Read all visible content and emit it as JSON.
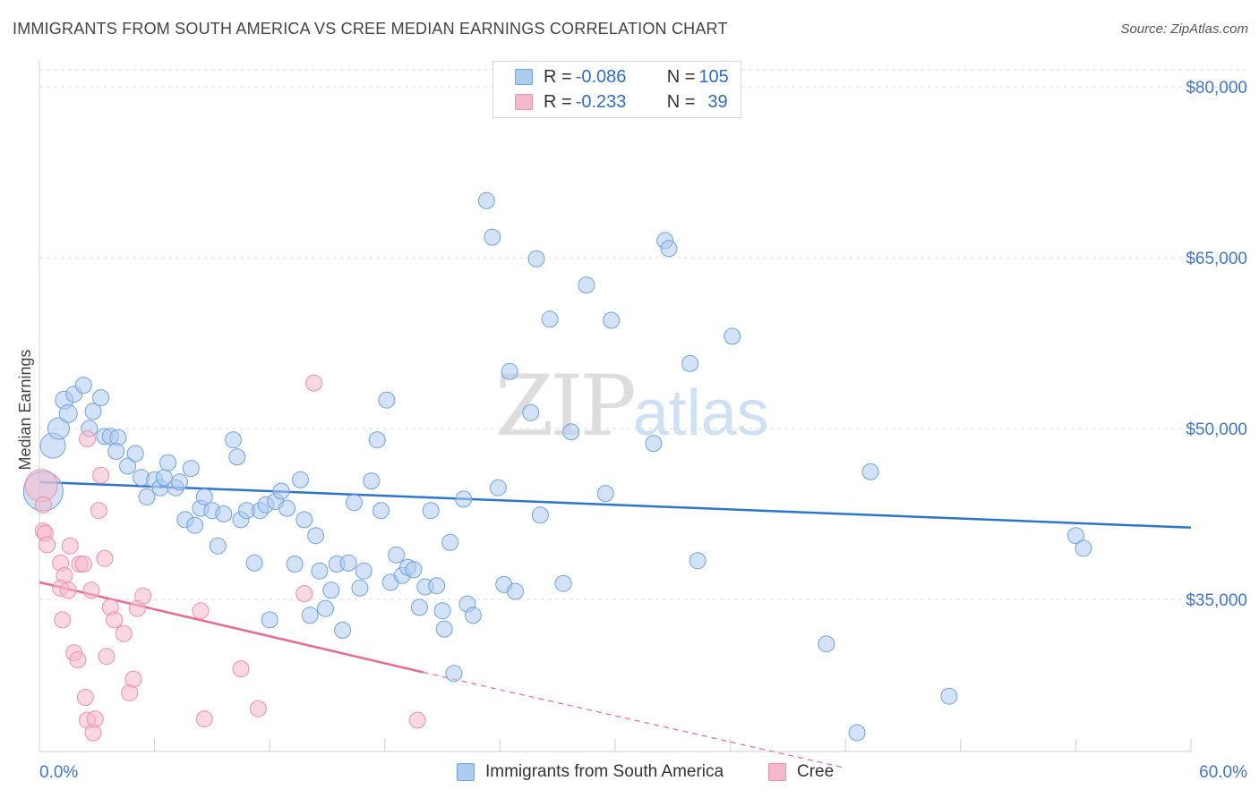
{
  "title": "IMMIGRANTS FROM SOUTH AMERICA VS CREE MEDIAN EARNINGS CORRELATION CHART",
  "source": "Source: ZipAtlas.com",
  "watermark": {
    "zip": "ZIP",
    "atlas": "atlas"
  },
  "legend": {
    "rows": [
      {
        "r_label": "R = ",
        "r_value": "-0.086",
        "n_label": "N = ",
        "n_value": "105",
        "color": "#aecbf0"
      },
      {
        "r_label": "R = ",
        "r_value": "-0.233",
        "n_label": "N = ",
        "n_value": "39",
        "color": "#f6b8cb"
      }
    ]
  },
  "bottom_legend": [
    {
      "label": "Immigrants from South America",
      "color": "#aecbf0"
    },
    {
      "label": "Cree",
      "color": "#f6b8cb"
    }
  ],
  "chart_data": {
    "type": "scatter",
    "title": "IMMIGRANTS FROM SOUTH AMERICA VS CREE MEDIAN EARNINGS CORRELATION CHART",
    "ylabel": "Median Earnings",
    "xlabel": "",
    "xlim": [
      0,
      60
    ],
    "ylim": [
      20000,
      82000
    ],
    "x_tick_labels": [
      "0.0%",
      "60.0%"
    ],
    "y_ticks": [
      35000,
      50000,
      65000,
      80000
    ],
    "y_tick_labels": [
      "$35,000",
      "$50,000",
      "$65,000",
      "$80,000"
    ],
    "grid": true,
    "series": [
      {
        "name": "Immigrants from South America",
        "color": "#6fa3e0",
        "fill": "#aecbf0",
        "trend": {
          "x": [
            0,
            60
          ],
          "y": [
            45300,
            41300
          ]
        },
        "points": [
          [
            0.2,
            44500,
            22
          ],
          [
            0.7,
            48500,
            14
          ],
          [
            1.0,
            50000,
            12
          ],
          [
            1.3,
            52500,
            10
          ],
          [
            1.5,
            51300,
            10
          ],
          [
            1.8,
            53000,
            9
          ],
          [
            2.3,
            53800,
            9
          ],
          [
            2.6,
            50000,
            9
          ],
          [
            2.8,
            51500,
            9
          ],
          [
            3.2,
            52700,
            9
          ],
          [
            3.4,
            49300,
            9
          ],
          [
            3.7,
            49300,
            9
          ],
          [
            4.1,
            49200,
            9
          ],
          [
            4.0,
            48000,
            9
          ],
          [
            4.6,
            46700,
            9
          ],
          [
            5.0,
            47800,
            9
          ],
          [
            5.3,
            45700,
            9
          ],
          [
            5.6,
            44000,
            9
          ],
          [
            6.0,
            45500,
            9
          ],
          [
            6.3,
            44800,
            9
          ],
          [
            6.5,
            45700,
            9
          ],
          [
            6.7,
            47000,
            9
          ],
          [
            7.1,
            44800,
            9
          ],
          [
            7.3,
            45300,
            9
          ],
          [
            7.6,
            42000,
            9
          ],
          [
            7.9,
            46500,
            9
          ],
          [
            8.1,
            41500,
            9
          ],
          [
            8.4,
            43000,
            9
          ],
          [
            8.6,
            44000,
            9
          ],
          [
            9.0,
            42800,
            9
          ],
          [
            9.3,
            39700,
            9
          ],
          [
            9.6,
            42500,
            9
          ],
          [
            10.1,
            49000,
            9
          ],
          [
            10.3,
            47500,
            9
          ],
          [
            10.5,
            42000,
            9
          ],
          [
            10.8,
            42800,
            9
          ],
          [
            11.2,
            38200,
            9
          ],
          [
            11.5,
            42800,
            9
          ],
          [
            11.8,
            43300,
            9
          ],
          [
            12.0,
            33200,
            9
          ],
          [
            12.3,
            43600,
            9
          ],
          [
            12.6,
            44500,
            9
          ],
          [
            12.9,
            43000,
            9
          ],
          [
            13.3,
            38100,
            9
          ],
          [
            13.6,
            45500,
            9
          ],
          [
            13.8,
            42000,
            9
          ],
          [
            14.1,
            33600,
            9
          ],
          [
            14.4,
            40600,
            9
          ],
          [
            14.6,
            37500,
            9
          ],
          [
            14.9,
            34200,
            9
          ],
          [
            15.2,
            35800,
            9
          ],
          [
            15.5,
            38100,
            9
          ],
          [
            15.8,
            32300,
            9
          ],
          [
            16.1,
            38200,
            9
          ],
          [
            16.4,
            43500,
            9
          ],
          [
            16.7,
            36000,
            9
          ],
          [
            16.9,
            37500,
            9
          ],
          [
            17.3,
            45400,
            9
          ],
          [
            17.6,
            49000,
            9
          ],
          [
            17.8,
            42800,
            9
          ],
          [
            18.1,
            52500,
            9
          ],
          [
            18.3,
            36500,
            9
          ],
          [
            18.6,
            38900,
            9
          ],
          [
            18.9,
            37100,
            9
          ],
          [
            19.2,
            37800,
            9
          ],
          [
            19.5,
            37600,
            9
          ],
          [
            19.8,
            34300,
            9
          ],
          [
            20.1,
            36100,
            9
          ],
          [
            20.4,
            42800,
            9
          ],
          [
            20.7,
            36200,
            9
          ],
          [
            21.0,
            34000,
            9
          ],
          [
            21.1,
            32400,
            9
          ],
          [
            21.4,
            40000,
            9
          ],
          [
            21.6,
            28500,
            9
          ],
          [
            22.1,
            43800,
            9
          ],
          [
            22.3,
            34600,
            9
          ],
          [
            22.6,
            33600,
            9
          ],
          [
            23.3,
            70000,
            9
          ],
          [
            23.6,
            66800,
            9
          ],
          [
            23.9,
            44800,
            9
          ],
          [
            24.2,
            36300,
            9
          ],
          [
            24.5,
            55000,
            9
          ],
          [
            24.8,
            35700,
            9
          ],
          [
            25.6,
            51400,
            9
          ],
          [
            25.9,
            64900,
            9
          ],
          [
            26.1,
            42400,
            9
          ],
          [
            26.6,
            59600,
            9
          ],
          [
            27.3,
            36400,
            9
          ],
          [
            27.7,
            49700,
            9
          ],
          [
            28.5,
            62600,
            9
          ],
          [
            29.5,
            44300,
            9
          ],
          [
            29.8,
            59500,
            9
          ],
          [
            32.0,
            48700,
            9
          ],
          [
            32.6,
            66500,
            9
          ],
          [
            32.8,
            65800,
            9
          ],
          [
            33.9,
            55700,
            9
          ],
          [
            34.3,
            38400,
            9
          ],
          [
            36.1,
            58100,
            9
          ],
          [
            41.0,
            31100,
            9
          ],
          [
            42.6,
            23300,
            9
          ],
          [
            43.3,
            46200,
            9
          ],
          [
            47.4,
            26500,
            9
          ],
          [
            54.0,
            40600,
            9
          ],
          [
            54.4,
            39500,
            9
          ]
        ]
      },
      {
        "name": "Cree",
        "color": "#ee8fae",
        "fill": "#f6b8cb",
        "trend": {
          "x": [
            0,
            20
          ],
          "y": [
            36500,
            28600
          ]
        },
        "trend_dashed": {
          "x": [
            20,
            42
          ],
          "y": [
            28600,
            20200
          ]
        },
        "points": [
          [
            0.1,
            45000,
            18
          ],
          [
            0.2,
            43300,
            9
          ],
          [
            0.2,
            41000,
            9
          ],
          [
            0.3,
            40800,
            9
          ],
          [
            0.4,
            39800,
            9
          ],
          [
            1.1,
            38200,
            9
          ],
          [
            1.3,
            37100,
            9
          ],
          [
            1.1,
            36000,
            9
          ],
          [
            1.2,
            33200,
            9
          ],
          [
            1.6,
            39700,
            9
          ],
          [
            1.5,
            35800,
            9
          ],
          [
            1.8,
            30300,
            9
          ],
          [
            2.0,
            29700,
            9
          ],
          [
            2.1,
            38100,
            9
          ],
          [
            2.3,
            38100,
            9
          ],
          [
            2.4,
            26400,
            9
          ],
          [
            2.5,
            24400,
            9
          ],
          [
            2.7,
            35800,
            9
          ],
          [
            2.8,
            23300,
            9
          ],
          [
            2.9,
            24500,
            9
          ],
          [
            3.1,
            42800,
            9
          ],
          [
            3.2,
            45900,
            9
          ],
          [
            3.4,
            38600,
            9
          ],
          [
            3.5,
            30000,
            9
          ],
          [
            3.7,
            34300,
            9
          ],
          [
            3.9,
            33200,
            9
          ],
          [
            4.4,
            32000,
            9
          ],
          [
            4.7,
            26800,
            9
          ],
          [
            4.9,
            28000,
            9
          ],
          [
            5.1,
            34200,
            9
          ],
          [
            5.4,
            35300,
            9
          ],
          [
            2.5,
            49100,
            9
          ],
          [
            8.4,
            34000,
            9
          ],
          [
            8.6,
            24500,
            9
          ],
          [
            10.5,
            28900,
            9
          ],
          [
            11.4,
            25400,
            9
          ],
          [
            13.8,
            35500,
            9
          ],
          [
            14.3,
            54000,
            9
          ],
          [
            19.7,
            24400,
            9
          ]
        ]
      }
    ]
  }
}
